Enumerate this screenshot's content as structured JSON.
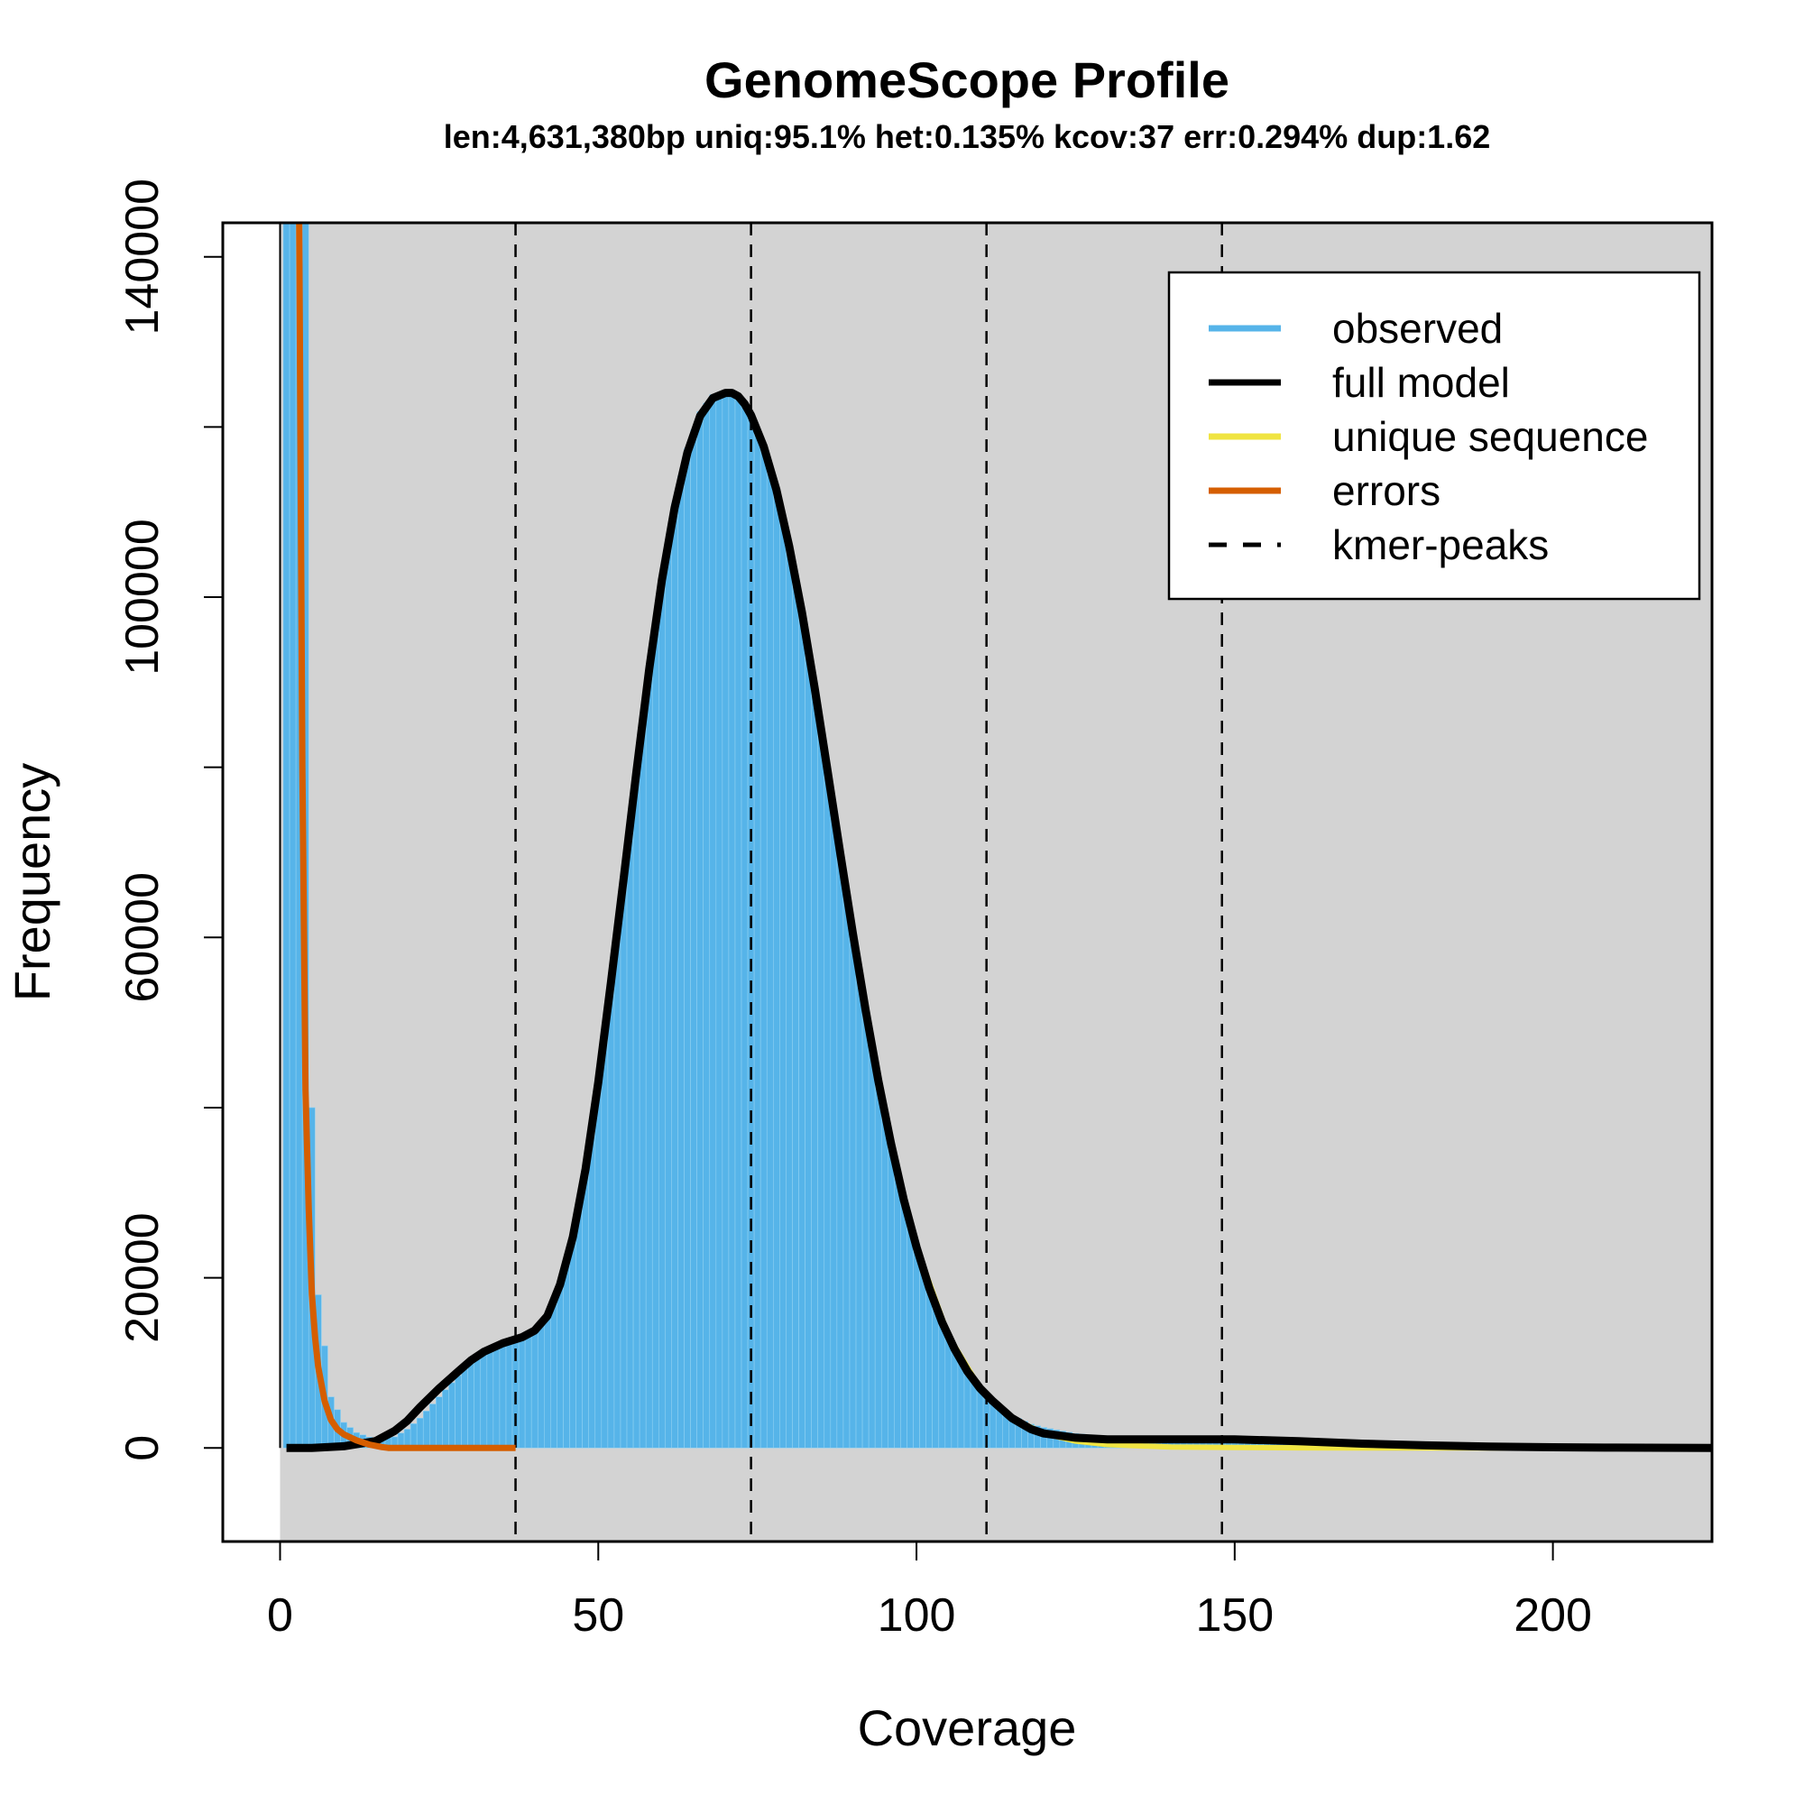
{
  "chart_data": {
    "type": "line",
    "title": "GenomeScope Profile",
    "subtitle": "len:4,631,380bp uniq:95.1% het:0.135% kcov:37 err:0.294% dup:1.62",
    "xlabel": "Coverage",
    "ylabel": "Frequency",
    "xlim": [
      -9,
      225
    ],
    "ylim": [
      -11000,
      144000
    ],
    "x_ticks": [
      0,
      50,
      100,
      150,
      200
    ],
    "y_ticks": [
      0,
      20000,
      40000,
      60000,
      80000,
      100000,
      120000,
      140000
    ],
    "y_tick_labels": [
      "0",
      "20000",
      "",
      "60000",
      "",
      "100000",
      "",
      "140000"
    ],
    "grid": false,
    "background": "#d3d3d3",
    "legend_position": "top-right",
    "legend": [
      {
        "label": "observed",
        "color": "#56b4e9",
        "style": "solid"
      },
      {
        "label": "full model",
        "color": "#000000",
        "style": "solid"
      },
      {
        "label": "unique sequence",
        "color": "#f0e442",
        "style": "solid"
      },
      {
        "label": "errors",
        "color": "#d55e00",
        "style": "solid"
      },
      {
        "label": "kmer-peaks",
        "color": "#000000",
        "style": "dashed"
      }
    ],
    "kmer_peaks": [
      37,
      74,
      111,
      148
    ],
    "series": [
      {
        "name": "observed",
        "color": "#56b4e9",
        "x": [
          1,
          2,
          3,
          4,
          5,
          6,
          8,
          10,
          12,
          15,
          18,
          20,
          22,
          25,
          28,
          30,
          32,
          35,
          38,
          40,
          42,
          44,
          46,
          48,
          50,
          52,
          54,
          56,
          58,
          60,
          62,
          64,
          66,
          68,
          70,
          71,
          72,
          73,
          74,
          76,
          78,
          80,
          82,
          84,
          86,
          88,
          90,
          92,
          94,
          96,
          98,
          100,
          102,
          104,
          106,
          108,
          110,
          112,
          115,
          118,
          120,
          125,
          130,
          140,
          150,
          160,
          170,
          180,
          190,
          200,
          210,
          220,
          225
        ],
        "y": [
          144000,
          144000,
          144000,
          144000,
          40000,
          18000,
          6000,
          3000,
          1800,
          1000,
          1300,
          2200,
          3500,
          6000,
          8500,
          10000,
          11200,
          12200,
          13000,
          14000,
          15800,
          19500,
          25000,
          33000,
          43500,
          55000,
          67500,
          80000,
          92000,
          102500,
          111000,
          117500,
          121800,
          123800,
          124200,
          124100,
          123600,
          122700,
          121400,
          117700,
          112600,
          106000,
          98200,
          89300,
          79700,
          70000,
          60500,
          51500,
          43200,
          35800,
          29200,
          23600,
          18800,
          14800,
          11600,
          9000,
          7000,
          5500,
          3800,
          2800,
          2400,
          1700,
          1300,
          1050,
          1000,
          800,
          500,
          300,
          150,
          80,
          40,
          20,
          10
        ]
      },
      {
        "name": "full model",
        "color": "#000000",
        "x": [
          1,
          5,
          10,
          15,
          18,
          20,
          22,
          25,
          28,
          30,
          32,
          35,
          38,
          40,
          42,
          44,
          46,
          48,
          50,
          52,
          54,
          56,
          58,
          60,
          62,
          64,
          66,
          68,
          70,
          71,
          72,
          73,
          74,
          76,
          78,
          80,
          82,
          84,
          86,
          88,
          90,
          92,
          94,
          96,
          98,
          100,
          102,
          104,
          106,
          108,
          110,
          112,
          115,
          118,
          120,
          125,
          130,
          140,
          150,
          160,
          170,
          180,
          190,
          200,
          210,
          220,
          225
        ],
        "y": [
          0,
          0,
          200,
          800,
          2000,
          3200,
          4800,
          7000,
          9000,
          10300,
          11300,
          12300,
          13000,
          13800,
          15500,
          19200,
          24800,
          32800,
          43000,
          54800,
          67000,
          79500,
          91500,
          102000,
          110500,
          117000,
          121300,
          123400,
          124000,
          124000,
          123600,
          122700,
          121400,
          117700,
          112600,
          106000,
          98200,
          89300,
          79700,
          70000,
          60500,
          51500,
          43200,
          35800,
          29200,
          23600,
          18800,
          14800,
          11600,
          9000,
          7000,
          5500,
          3500,
          2200,
          1700,
          1200,
          1000,
          1000,
          1000,
          800,
          500,
          300,
          150,
          80,
          40,
          20,
          10
        ]
      },
      {
        "name": "unique sequence",
        "color": "#f0e442",
        "x": [
          100,
          105,
          110,
          115,
          120,
          125,
          130,
          140,
          150,
          160,
          170,
          180,
          190,
          200,
          210,
          220,
          225
        ],
        "y": [
          23600,
          13200,
          7000,
          3500,
          1700,
          800,
          400,
          100,
          50,
          20,
          10,
          5,
          2,
          1,
          0,
          0,
          0
        ]
      },
      {
        "name": "errors",
        "color": "#d55e00",
        "x": [
          3,
          3.5,
          4,
          4.5,
          5,
          5.5,
          6,
          7,
          8,
          9,
          10,
          12,
          14,
          16,
          17,
          20,
          25,
          30,
          35,
          37
        ],
        "y": [
          144000,
          80000,
          42000,
          28000,
          18000,
          13000,
          9500,
          5500,
          3300,
          2200,
          1600,
          900,
          400,
          100,
          0,
          0,
          0,
          0,
          0,
          0
        ]
      }
    ]
  }
}
